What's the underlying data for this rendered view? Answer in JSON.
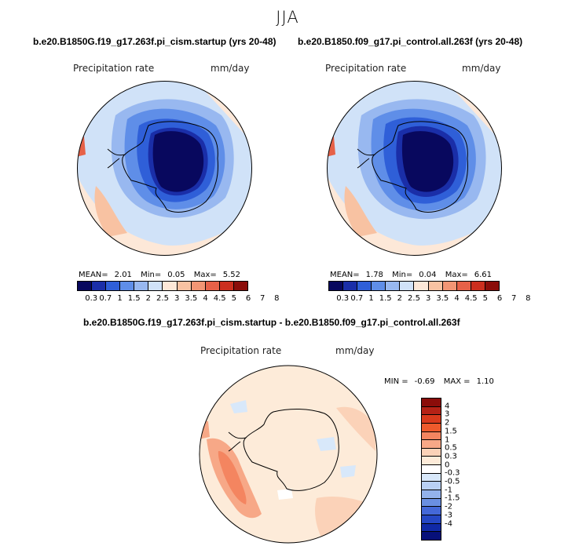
{
  "season": "JJA",
  "panels": {
    "left": {
      "title": "b.e20.B1850G.f19_g17.263f.pi_cism.startup (yrs 20-48)",
      "variable": "Precipitation rate",
      "units": "mm/day",
      "mean_label": "MEAN=",
      "mean": "2.01",
      "min_label": "Min=",
      "min": "0.05",
      "max_label": "Max=",
      "max": "5.52"
    },
    "right": {
      "title": "b.e20.B1850.f09_g17.pi_control.all.263f (yrs 20-48)",
      "variable": "Precipitation rate",
      "units": "mm/day",
      "mean_label": "MEAN=",
      "mean": "1.78",
      "min_label": "Min=",
      "min": "0.04",
      "max_label": "Max=",
      "max": "6.61"
    },
    "diff": {
      "title": "b.e20.B1850G.f19_g17.263f.pi_cism.startup - b.e20.B1850.f09_g17.pi_control.all.263f",
      "variable": "Precipitation rate",
      "units": "mm/day",
      "min_label": "MIN =",
      "min": "-0.69",
      "max_label": "MAX =",
      "max": "1.10"
    }
  },
  "abs_colorbar": {
    "colors": [
      "#08085e",
      "#1a2ea8",
      "#2f5fd8",
      "#5f8ee8",
      "#98b8f0",
      "#d0e2f8",
      "#fde8d8",
      "#f8c2a2",
      "#f29574",
      "#e66148",
      "#cc2f1f",
      "#8b0d0a"
    ],
    "labels": [
      "0.3",
      "0.7",
      "1",
      "1.5",
      "2",
      "2.5",
      "3",
      "3.5",
      "4",
      "4.5",
      "5",
      "6",
      "7",
      "8"
    ]
  },
  "diff_colorbar": {
    "colors": [
      "#8b0d0a",
      "#b52216",
      "#d93a1c",
      "#ee5a2c",
      "#f48560",
      "#f7a887",
      "#fbd2b8",
      "#fdebd9",
      "#ffffff",
      "#d8e8fa",
      "#b9d0f4",
      "#93b2ec",
      "#6a8fe2",
      "#4468d8",
      "#2547c4",
      "#1029a6",
      "#07107a"
    ],
    "labels": [
      "4",
      "3",
      "2",
      "1.5",
      "1",
      "0.5",
      "0.3",
      "0",
      "-0.3",
      "-0.5",
      "-1",
      "-1.5",
      "-2",
      "-3",
      "-4"
    ]
  }
}
